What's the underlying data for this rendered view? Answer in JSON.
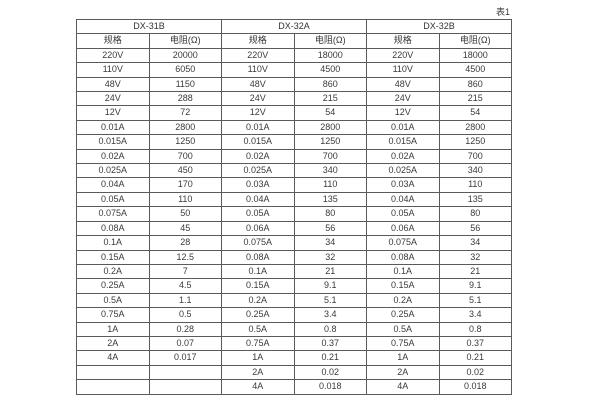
{
  "caption": "表1",
  "table": {
    "groups": [
      {
        "name": "DX-31B"
      },
      {
        "name": "DX-32A"
      },
      {
        "name": "DX-32B"
      }
    ],
    "spec_label": "规格",
    "res_label": "电阻(Ω)",
    "rows": [
      [
        "220V",
        "20000",
        "220V",
        "18000",
        "220V",
        "18000"
      ],
      [
        "110V",
        "6050",
        "110V",
        "4500",
        "110V",
        "4500"
      ],
      [
        "48V",
        "1150",
        "48V",
        "860",
        "48V",
        "860"
      ],
      [
        "24V",
        "288",
        "24V",
        "215",
        "24V",
        "215"
      ],
      [
        "12V",
        "72",
        "12V",
        "54",
        "12V",
        "54"
      ],
      [
        "0.01A",
        "2800",
        "0.01A",
        "2800",
        "0.01A",
        "2800"
      ],
      [
        "0.015A",
        "1250",
        "0.015A",
        "1250",
        "0.015A",
        "1250"
      ],
      [
        "0.02A",
        "700",
        "0.02A",
        "700",
        "0.02A",
        "700"
      ],
      [
        "0.025A",
        "450",
        "0.025A",
        "340",
        "0.025A",
        "340"
      ],
      [
        "0.04A",
        "170",
        "0.03A",
        "110",
        "0.03A",
        "110"
      ],
      [
        "0.05A",
        "110",
        "0.04A",
        "135",
        "0.04A",
        "135"
      ],
      [
        "0.075A",
        "50",
        "0.05A",
        "80",
        "0.05A",
        "80"
      ],
      [
        "0.08A",
        "45",
        "0.06A",
        "56",
        "0.06A",
        "56"
      ],
      [
        "0.1A",
        "28",
        "0.075A",
        "34",
        "0.075A",
        "34"
      ],
      [
        "0.15A",
        "12.5",
        "0.08A",
        "32",
        "0.08A",
        "32"
      ],
      [
        "0.2A",
        "7",
        "0.1A",
        "21",
        "0.1A",
        "21"
      ],
      [
        "0.25A",
        "4.5",
        "0.15A",
        "9.1",
        "0.15A",
        "9.1"
      ],
      [
        "0.5A",
        "1.1",
        "0.2A",
        "5.1",
        "0.2A",
        "5.1"
      ],
      [
        "0.75A",
        "0.5",
        "0.25A",
        "3.4",
        "0.25A",
        "3.4"
      ],
      [
        "1A",
        "0.28",
        "0.5A",
        "0.8",
        "0.5A",
        "0.8"
      ],
      [
        "2A",
        "0.07",
        "0.75A",
        "0.37",
        "0.75A",
        "0.37"
      ],
      [
        "4A",
        "0.017",
        "1A",
        "0.21",
        "1A",
        "0.21"
      ],
      [
        "",
        "",
        "2A",
        "0.02",
        "2A",
        "0.02"
      ],
      [
        "",
        "",
        "4A",
        "0.018",
        "4A",
        "0.018"
      ]
    ]
  }
}
